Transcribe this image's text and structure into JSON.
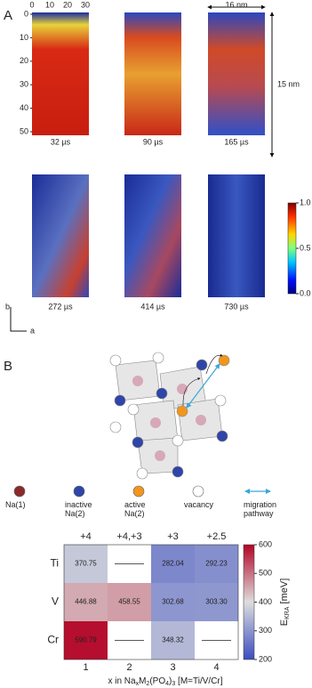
{
  "panel_a": {
    "label": "A",
    "x_ticks": [
      0,
      10,
      20,
      30
    ],
    "y_ticks": [
      0,
      10,
      20,
      30,
      40,
      50
    ],
    "width_label": "16 nm",
    "height_label": "15 nm",
    "times": [
      "32 µs",
      "90 µs",
      "165 µs",
      "272 µs",
      "414 µs",
      "730 µs"
    ],
    "colorbar_ticks": [
      {
        "value": 1,
        "label": "1.0"
      },
      {
        "value": 0.5,
        "label": "0.5"
      },
      {
        "value": 0,
        "label": "0.0"
      }
    ],
    "colorbar_lim": [
      0,
      1
    ],
    "axis_b": "b",
    "axis_a": "a"
  },
  "panel_b": {
    "label": "B",
    "legend": [
      {
        "name": "Na(1)",
        "color": "#8b2a2a"
      },
      {
        "name": "inactive\nNa(2)",
        "color": "#2f45a8"
      },
      {
        "name": "active\nNa(2)",
        "color": "#f0961e"
      },
      {
        "name": "vacancy",
        "color": "#ffffff"
      },
      {
        "name": "migration\npathway",
        "color": "#3aa7d8"
      }
    ],
    "heatmap": {
      "type": "heatmap",
      "top_labels": [
        "+4",
        "+4,+3",
        "+3",
        "+2.5"
      ],
      "categories": [
        1,
        2,
        3,
        4
      ],
      "rows": [
        "Ti",
        "V",
        "Cr"
      ],
      "values": [
        [
          370.75,
          null,
          282.04,
          292.23
        ],
        [
          446.88,
          458.55,
          302.68,
          303.3
        ],
        [
          590.79,
          null,
          348.32,
          null
        ]
      ],
      "value_labels": [
        [
          "370.75",
          null,
          "282.04",
          "292.23"
        ],
        [
          "446.88",
          "458.55",
          "302.68",
          "303.30"
        ],
        [
          "590.79",
          null,
          "348.32",
          null
        ]
      ],
      "x_label_parts": [
        "x in Na",
        "x",
        "M",
        "2",
        "(PO",
        "4",
        ")",
        "3",
        " [M=Ti/V/Cr]"
      ],
      "colorbar_label_parts": [
        "E",
        "KRA",
        " [meV]"
      ],
      "clim": [
        200,
        600
      ],
      "cticks": [
        200,
        300,
        400,
        500,
        600
      ]
    }
  }
}
